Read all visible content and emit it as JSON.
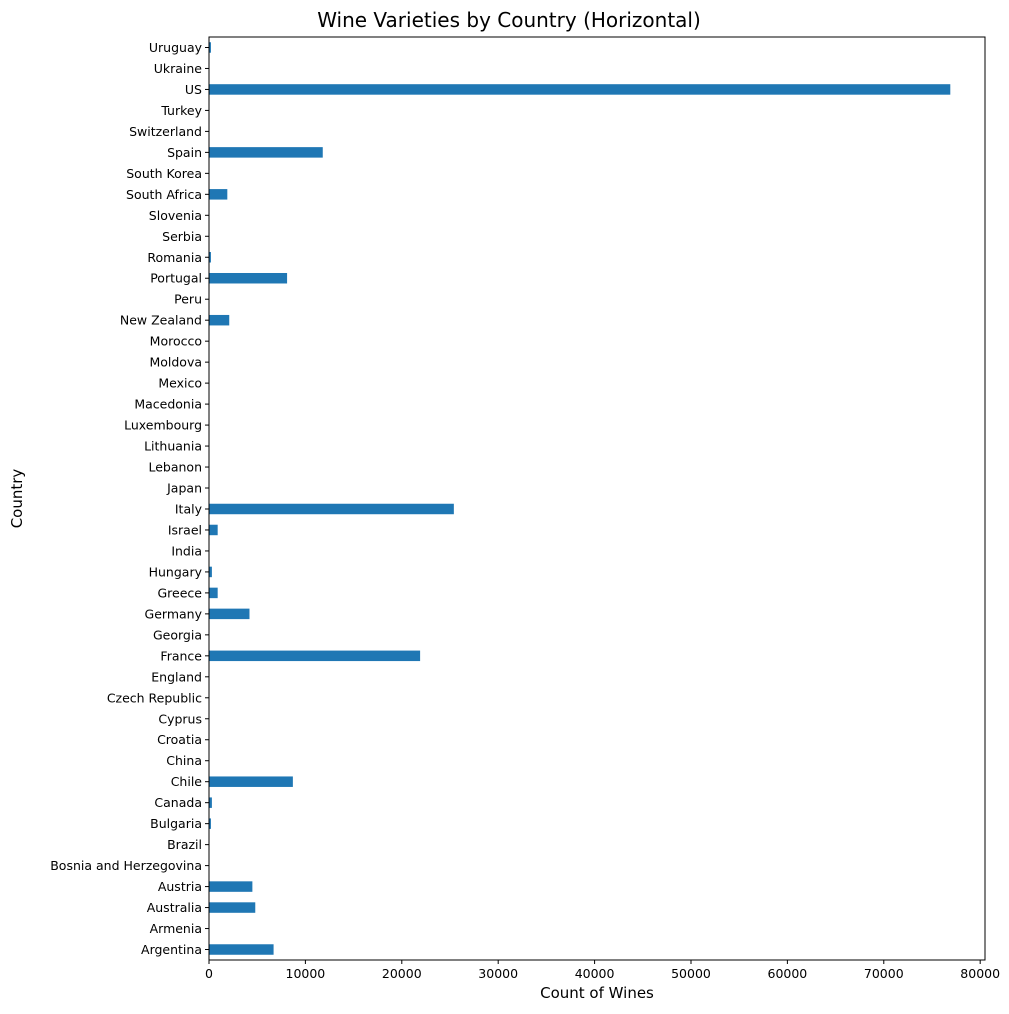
{
  "chart_data": {
    "type": "bar",
    "orientation": "horizontal",
    "title": "Wine Varieties by Country (Horizontal)",
    "xlabel": "Count of Wines",
    "ylabel": "Country",
    "xlim": [
      0,
      80500
    ],
    "xticks": [
      0,
      10000,
      20000,
      30000,
      40000,
      50000,
      60000,
      70000,
      80000
    ],
    "grid": false,
    "bar_color": "#1f77b4",
    "categories": [
      "Argentina",
      "Armenia",
      "Australia",
      "Austria",
      "Bosnia and Herzegovina",
      "Brazil",
      "Bulgaria",
      "Canada",
      "Chile",
      "China",
      "Croatia",
      "Cyprus",
      "Czech Republic",
      "England",
      "France",
      "Georgia",
      "Germany",
      "Greece",
      "Hungary",
      "India",
      "Israel",
      "Italy",
      "Japan",
      "Lebanon",
      "Lithuania",
      "Luxembourg",
      "Macedonia",
      "Mexico",
      "Moldova",
      "Morocco",
      "New Zealand",
      "Peru",
      "Portugal",
      "Romania",
      "Serbia",
      "Slovenia",
      "South Africa",
      "South Korea",
      "Spain",
      "Switzerland",
      "Turkey",
      "US",
      "Ukraine",
      "Uruguay"
    ],
    "values": [
      6700,
      0,
      4800,
      4500,
      0,
      0,
      200,
      300,
      8700,
      0,
      0,
      0,
      0,
      0,
      21900,
      0,
      4200,
      900,
      300,
      0,
      900,
      25400,
      0,
      0,
      0,
      0,
      0,
      0,
      0,
      0,
      2100,
      0,
      8100,
      200,
      0,
      0,
      1900,
      0,
      11800,
      0,
      0,
      76900,
      0,
      200
    ]
  }
}
